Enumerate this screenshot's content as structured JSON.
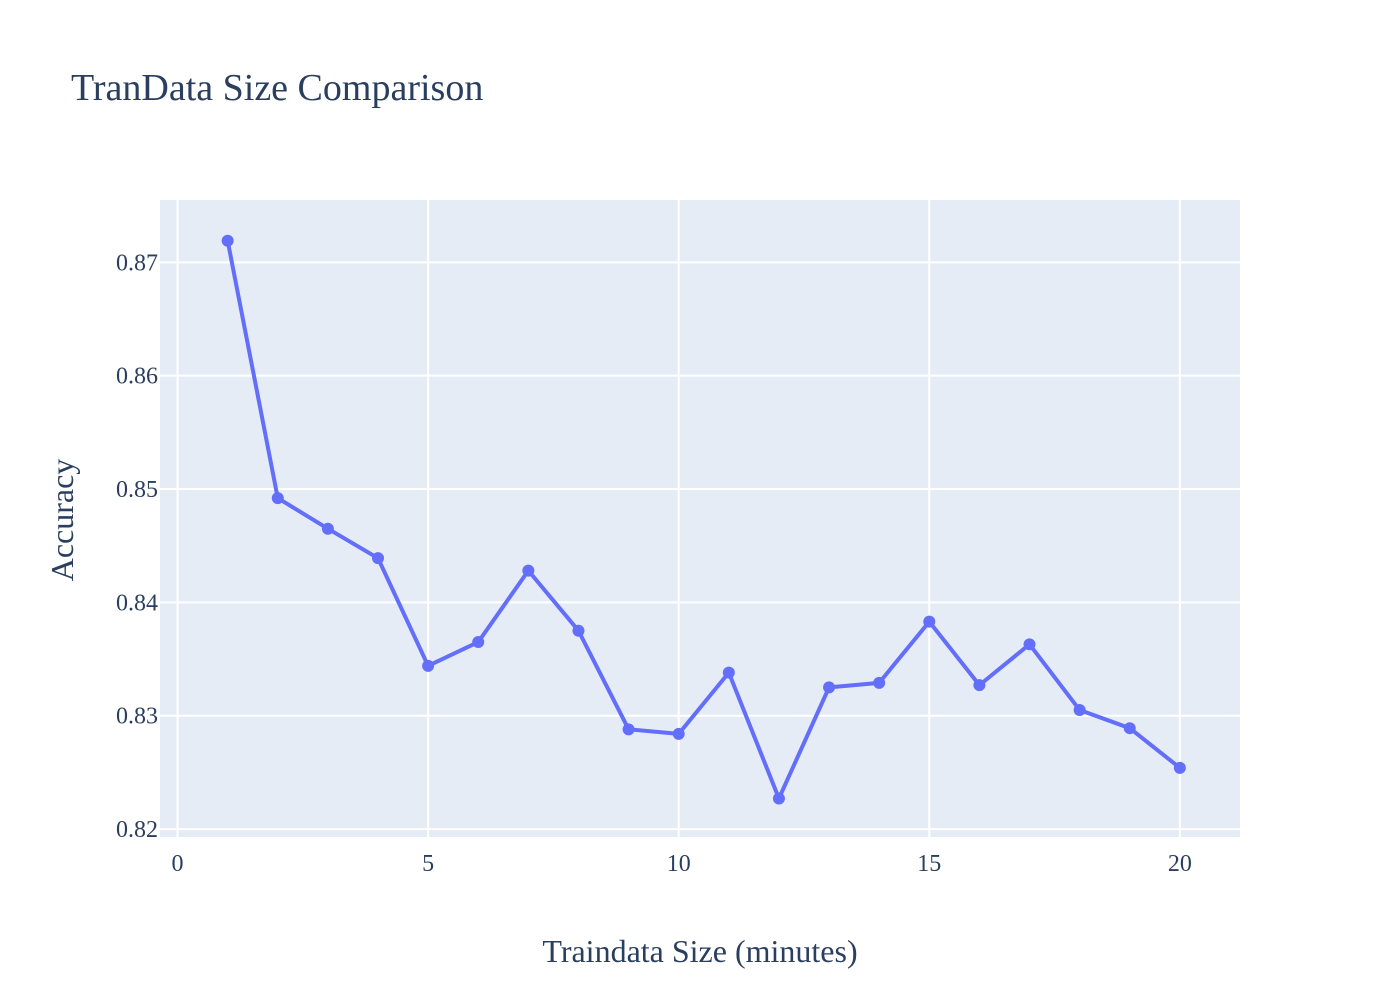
{
  "chart_data": {
    "type": "line",
    "title": "TranData Size Comparison",
    "xlabel": "Traindata Size (minutes)",
    "ylabel": "Accuracy",
    "xlim": [
      -0.35,
      21.2
    ],
    "ylim": [
      0.8193,
      0.8755
    ],
    "x_ticks": [
      0,
      5,
      10,
      15,
      20
    ],
    "x_tick_labels": [
      "0",
      "5",
      "10",
      "15",
      "20"
    ],
    "y_ticks": [
      0.82,
      0.83,
      0.84,
      0.85,
      0.86,
      0.87
    ],
    "y_tick_labels": [
      "0.82",
      "0.83",
      "0.84",
      "0.85",
      "0.86",
      "0.87"
    ],
    "grid": true,
    "mode": "lines+markers",
    "series": [
      {
        "name": "Accuracy",
        "color": "#636efa",
        "x": [
          1,
          2,
          3,
          4,
          5,
          6,
          7,
          8,
          9,
          10,
          11,
          12,
          13,
          14,
          15,
          16,
          17,
          18,
          19,
          20
        ],
        "y": [
          0.8719,
          0.8492,
          0.8465,
          0.8439,
          0.8344,
          0.8365,
          0.8428,
          0.8375,
          0.8288,
          0.8284,
          0.8338,
          0.8227,
          0.8325,
          0.8329,
          0.8383,
          0.8327,
          0.8363,
          0.8305,
          0.8289,
          0.8254
        ]
      }
    ],
    "colors": {
      "plot_background": "#e5ecf6",
      "grid": "#ffffff",
      "text": "#2a3f5f"
    }
  }
}
